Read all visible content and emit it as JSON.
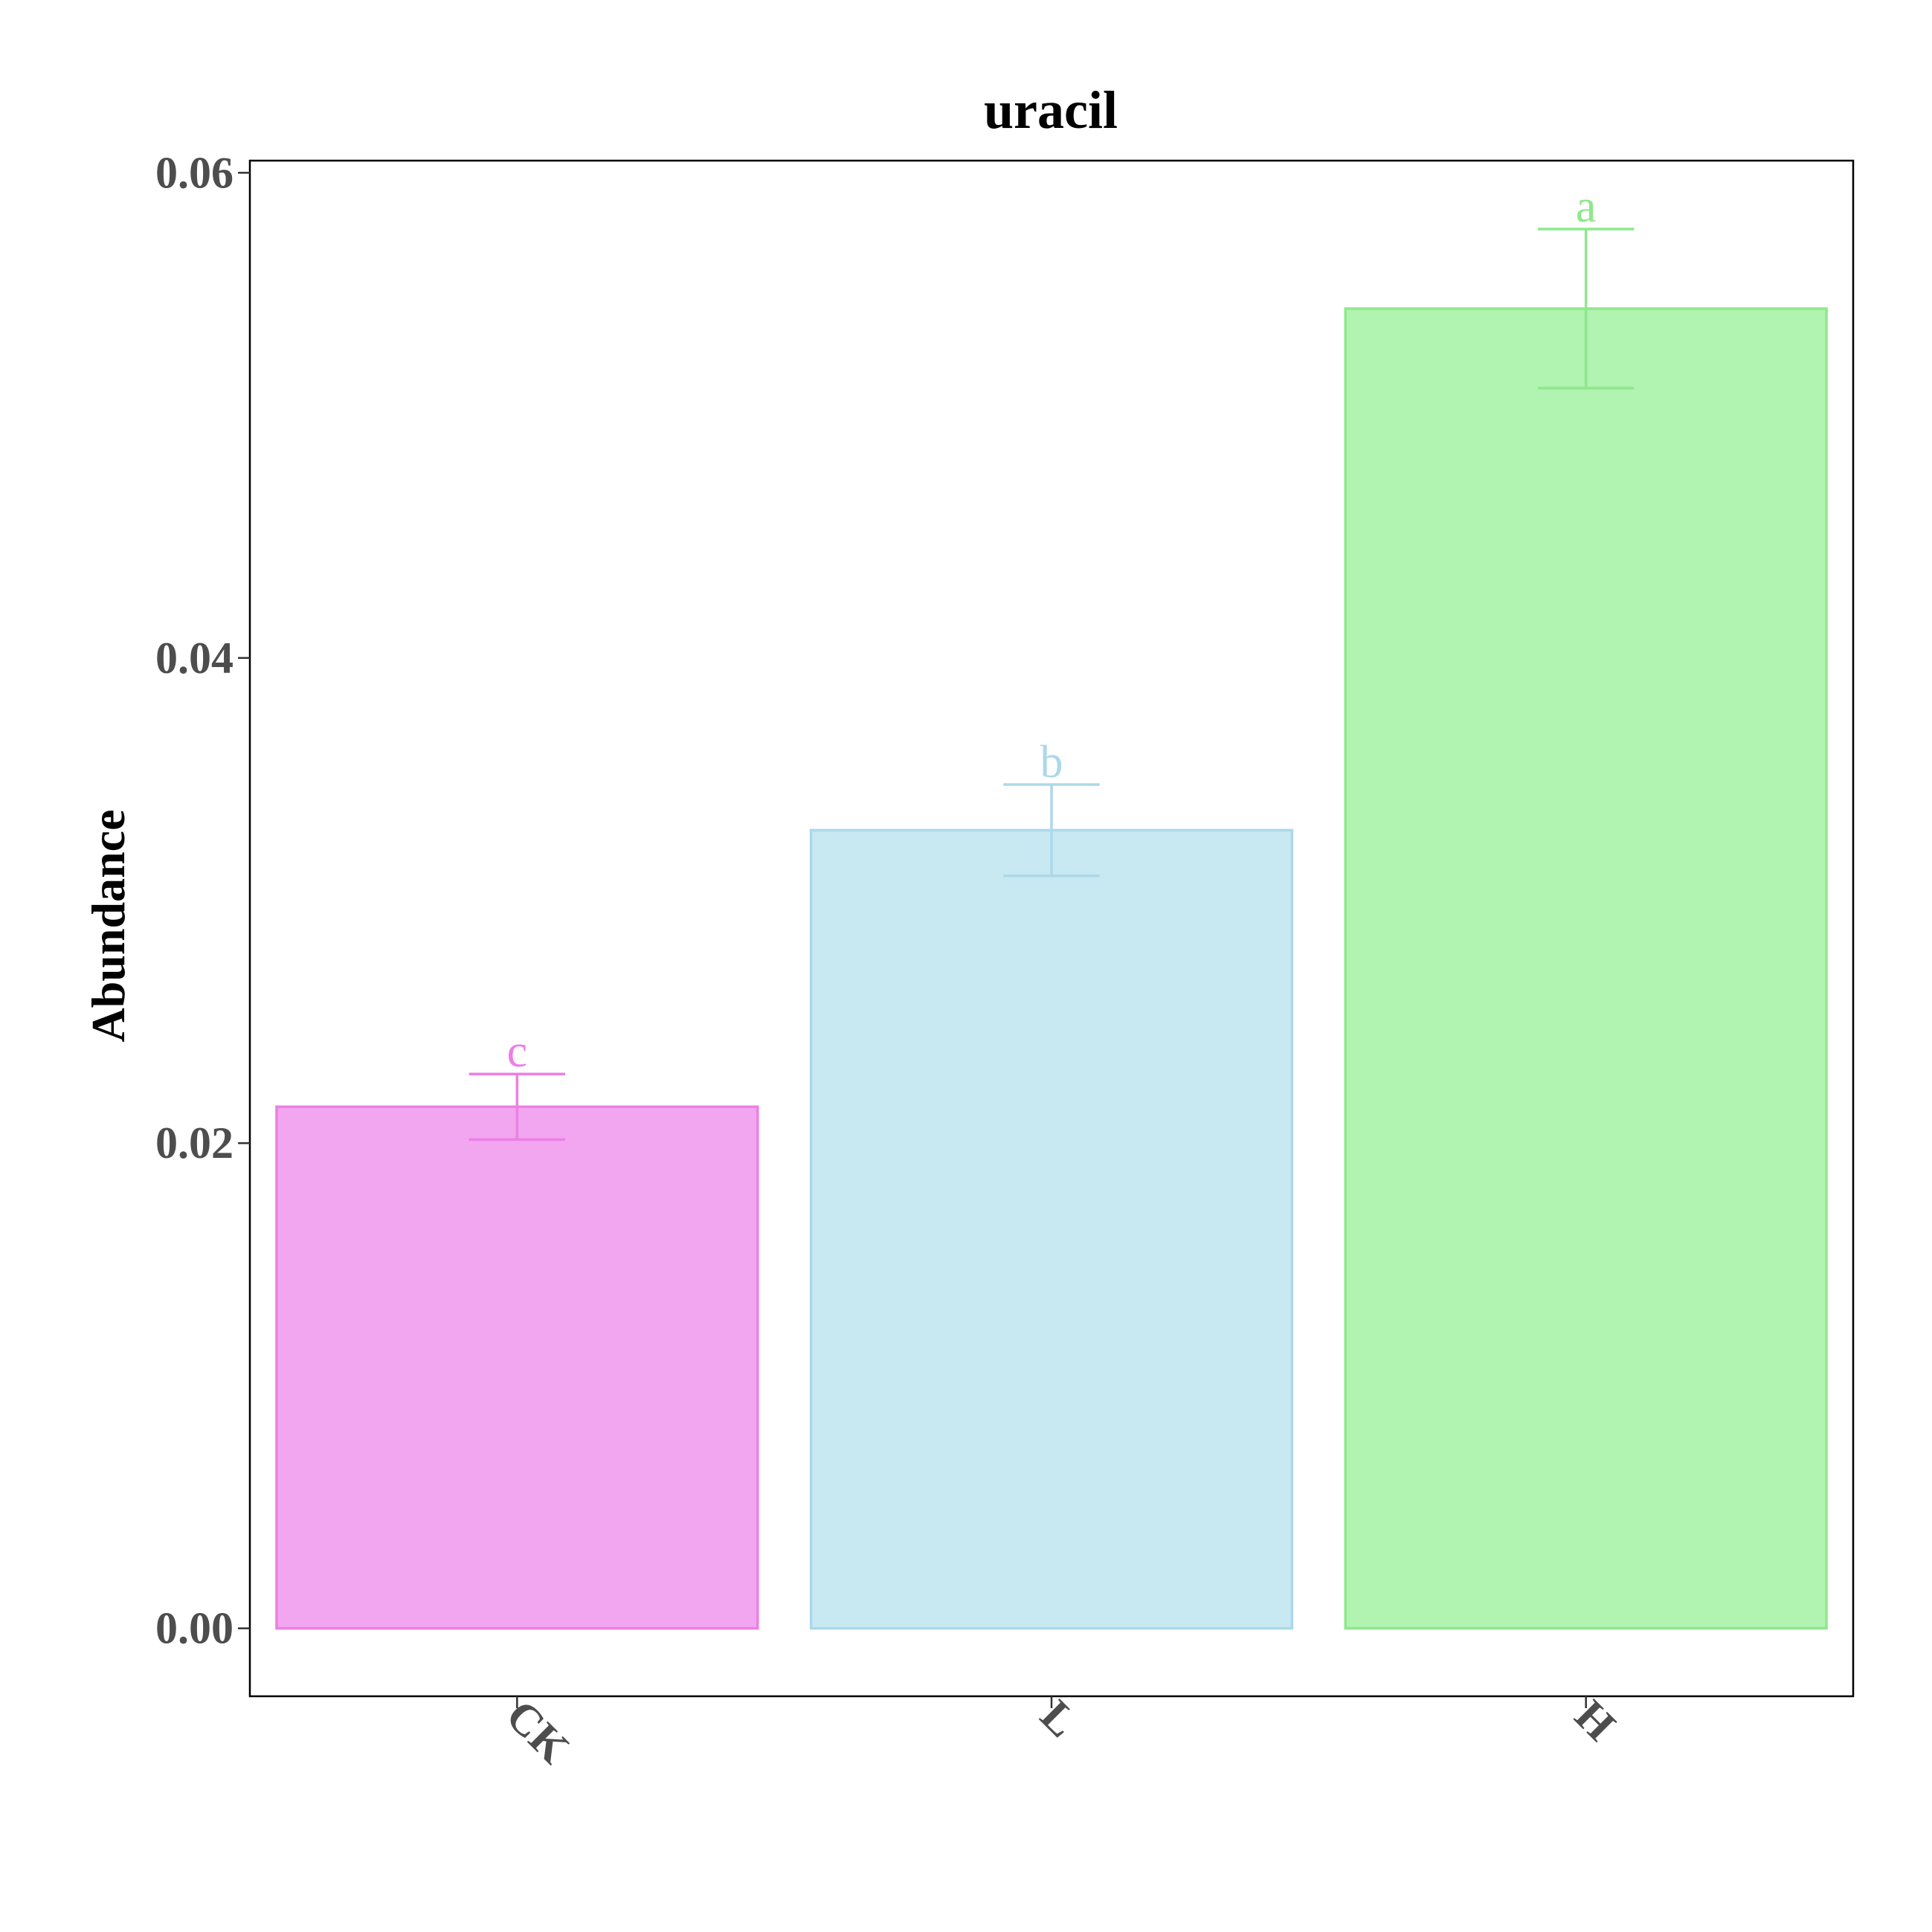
{
  "chart_data": {
    "type": "bar",
    "title": "uracil",
    "xlabel": "",
    "ylabel": "Abundance",
    "ylim": [
      -0.0028,
      0.0605
    ],
    "yticks": [
      "0.00",
      "0.02",
      "0.04",
      "0.06"
    ],
    "categories": [
      "CK",
      "L",
      "H"
    ],
    "values": [
      0.0215,
      0.0329,
      0.0544
    ],
    "errors": [
      0.00135,
      0.00188,
      0.00328
    ],
    "significance": [
      "c",
      "b",
      "a"
    ],
    "fill_colors": [
      "#f3a6f0",
      "#c8e9f2",
      "#b1f3b0"
    ],
    "stroke_colors": [
      "#ec7fe5",
      "#acd8ea",
      "#8ee88c"
    ],
    "grid": false,
    "legend": "none"
  }
}
